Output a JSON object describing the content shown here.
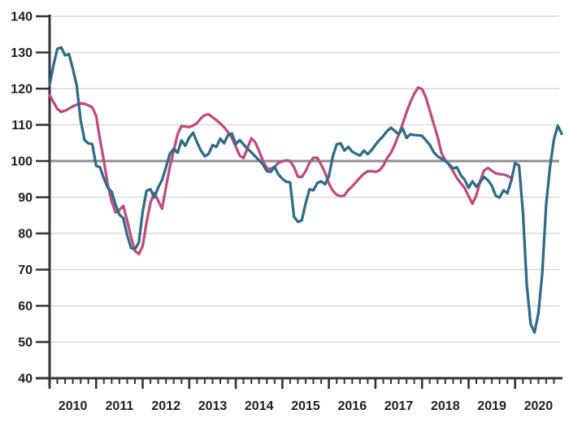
{
  "chart_data": {
    "type": "line",
    "title": "",
    "xlabel": "",
    "ylabel": "",
    "grid": true,
    "legend": "none",
    "x_axis": {
      "start": 2010,
      "end": 2021,
      "tick_years": [
        2010,
        2011,
        2012,
        2013,
        2014,
        2015,
        2016,
        2017,
        2018,
        2019,
        2020
      ],
      "tick_labels": [
        "2010",
        "2011",
        "2012",
        "2013",
        "2014",
        "2015",
        "2016",
        "2017",
        "2018",
        "2019",
        "2020"
      ],
      "minor_ticks_per_year": 6
    },
    "y_axis": {
      "min": 40,
      "max": 140,
      "tick_interval": 10,
      "ticks": [
        40,
        50,
        60,
        70,
        80,
        90,
        100,
        110,
        120,
        130,
        140
      ],
      "emphasized_gridline": 100
    },
    "colors": {
      "teal_line": "#306b88",
      "pink_line": "#bd4d80",
      "gridline": "#d9d9d9",
      "emphasized_gridline": "#8f8f8f",
      "axis": "#333333",
      "tick_label": "#1f1f1f",
      "background": "#ffffff"
    },
    "series": [
      {
        "id": "series-pink",
        "color": "#bd4d80",
        "start_year": 2010,
        "points_per_year": 12,
        "values": [
          118.2,
          116.3,
          114.4,
          113.6,
          113.9,
          114.5,
          115.1,
          115.6,
          115.9,
          115.8,
          115.4,
          114.8,
          112.5,
          106.0,
          100.0,
          93.5,
          88.8,
          85.8,
          86.5,
          87.6,
          83.5,
          79.0,
          75.2,
          74.3,
          76.5,
          83.0,
          88.5,
          91.2,
          89.0,
          86.8,
          92.8,
          98.4,
          102.9,
          107.4,
          109.7,
          109.5,
          109.4,
          109.8,
          110.5,
          111.8,
          112.7,
          112.9,
          112.1,
          111.3,
          110.4,
          109.3,
          108.0,
          106.4,
          104.0,
          101.5,
          100.8,
          103.5,
          106.3,
          105.2,
          102.8,
          100.0,
          98.0,
          97.8,
          98.4,
          99.5,
          99.9,
          100.2,
          100.0,
          98.3,
          95.7,
          95.6,
          97.2,
          99.5,
          100.9,
          100.9,
          99.0,
          96.8,
          93.8,
          91.8,
          90.7,
          90.3,
          90.5,
          92.0,
          93.0,
          94.2,
          95.4,
          96.5,
          97.2,
          97.2,
          97.0,
          97.4,
          98.7,
          100.8,
          102.3,
          104.6,
          107.3,
          110.2,
          113.5,
          116.3,
          118.6,
          120.3,
          119.9,
          117.5,
          114.0,
          110.3,
          106.8,
          102.3,
          100.2,
          98.9,
          97.2,
          95.3,
          93.9,
          92.5,
          90.3,
          88.2,
          90.5,
          94.5,
          97.4,
          98.1,
          97.3,
          96.6,
          96.4,
          96.3,
          95.9,
          95.4
        ]
      },
      {
        "id": "series-teal",
        "color": "#306b88",
        "start_year": 2010,
        "points_per_year": 12,
        "values": [
          121.0,
          126.5,
          131.0,
          131.4,
          129.2,
          129.5,
          125.5,
          120.8,
          111.3,
          105.8,
          104.9,
          104.7,
          98.7,
          98.3,
          95.2,
          92.6,
          91.5,
          88.0,
          85.2,
          84.2,
          79.5,
          76.0,
          75.6,
          77.5,
          86.0,
          91.8,
          92.2,
          89.9,
          92.7,
          94.8,
          98.3,
          102.0,
          103.4,
          102.3,
          105.7,
          104.2,
          106.5,
          107.8,
          105.2,
          102.9,
          101.3,
          102.0,
          104.4,
          103.9,
          106.2,
          104.9,
          107.2,
          107.6,
          104.7,
          105.8,
          104.6,
          103.4,
          102.4,
          101.3,
          100.2,
          99.1,
          97.2,
          97.0,
          98.4,
          96.3,
          95.1,
          94.3,
          94.1,
          84.6,
          83.2,
          83.6,
          88.3,
          92.2,
          91.9,
          93.9,
          94.4,
          93.6,
          95.8,
          101.3,
          104.6,
          104.9,
          102.9,
          103.9,
          102.6,
          102.0,
          101.5,
          102.9,
          101.9,
          103.0,
          104.5,
          105.8,
          106.9,
          108.3,
          109.2,
          108.3,
          107.4,
          109.0,
          106.4,
          107.4,
          107.2,
          107.1,
          107.0,
          105.7,
          104.5,
          102.5,
          101.3,
          100.7,
          100.0,
          99.1,
          97.9,
          98.3,
          96.1,
          94.8,
          92.6,
          94.4,
          92.9,
          94.2,
          95.6,
          94.7,
          93.2,
          90.4,
          89.9,
          91.9,
          91.1,
          94.6,
          99.4,
          98.8,
          86.0,
          66.0,
          55.0,
          52.6,
          58.0,
          69.0,
          88.0,
          98.5,
          106.0,
          109.8,
          107.5
        ]
      }
    ]
  }
}
